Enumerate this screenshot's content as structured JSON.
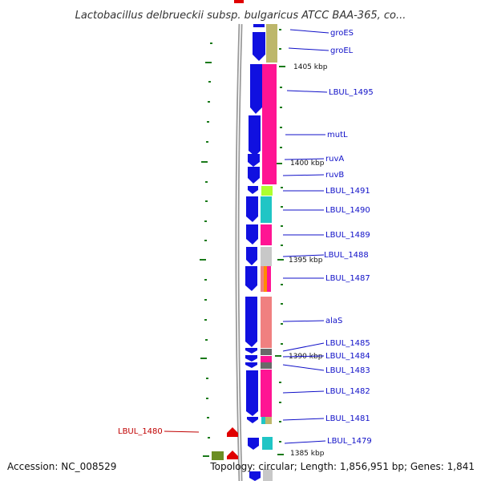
{
  "title": "Lactobacillus delbrueckii subsp. bulgaricus ATCC BAA-365, co...",
  "footer": {
    "accession": "Accession: NC_008529",
    "summary": "Topology: circular; Length: 1,856,951 bp; Genes: 1,841"
  },
  "colors": {
    "gene_arrow": "#1010e0",
    "label_blue": "#1010c8",
    "label_red": "#c00000",
    "tick": "#1a7a1a",
    "backbone": "#888888"
  },
  "kbp_ticks": [
    {
      "label": "1405 kbp"
    },
    {
      "label": "1400 kbp"
    },
    {
      "label": "1395 kbp"
    },
    {
      "label": "1390 kbp"
    },
    {
      "label": "1385 kbp"
    }
  ],
  "gene_labels": [
    {
      "name": "groES"
    },
    {
      "name": "groEL"
    },
    {
      "name": "LBUL_1495"
    },
    {
      "name": "mutL"
    },
    {
      "name": "ruvA"
    },
    {
      "name": "ruvB"
    },
    {
      "name": "LBUL_1491"
    },
    {
      "name": "LBUL_1490"
    },
    {
      "name": "LBUL_1489"
    },
    {
      "name": "LBUL_1488"
    },
    {
      "name": "LBUL_1487"
    },
    {
      "name": "alaS"
    },
    {
      "name": "LBUL_1485"
    },
    {
      "name": "LBUL_1484"
    },
    {
      "name": "LBUL_1483"
    },
    {
      "name": "LBUL_1482"
    },
    {
      "name": "LBUL_1481"
    },
    {
      "name": "LBUL_1479"
    }
  ],
  "other_strand_label": {
    "name": "LBUL_1480"
  },
  "cog_colors": [
    "#bdb76b",
    "#ff1493",
    "#adff2f",
    "#20c5c5",
    "#c8c8c8",
    "#f08080",
    "#696969",
    "#ff8c00",
    "#6b8e23"
  ]
}
